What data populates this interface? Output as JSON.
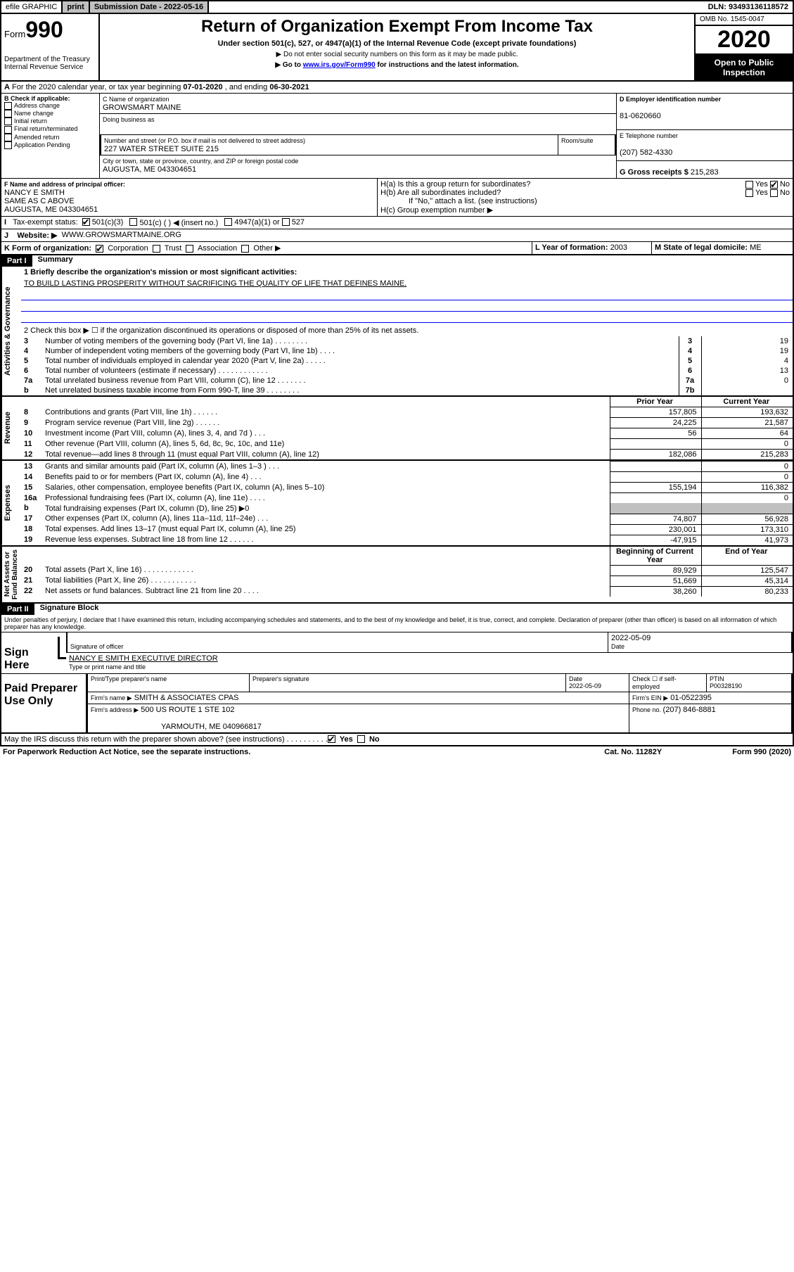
{
  "topbar": {
    "efile": "efile GRAPHIC",
    "print": "print",
    "subdate_label": "Submission Date - ",
    "subdate": "2022-05-16",
    "dln_label": "DLN: ",
    "dln": "93493136118572"
  },
  "header": {
    "form_word": "Form",
    "form_num": "990",
    "dept": "Department of the Treasury\nInternal Revenue Service",
    "title": "Return of Organization Exempt From Income Tax",
    "sub": "Under section 501(c), 527, or 4947(a)(1) of the Internal Revenue Code (except private foundations)",
    "sub2": "▶ Do not enter social security numbers on this form as it may be made public.",
    "sub3": "▶ Go to ",
    "sub3_link": "www.irs.gov/Form990",
    "sub3_tail": " for instructions and the latest information.",
    "omb": "OMB No. 1545-0047",
    "year": "2020",
    "inspect": "Open to Public Inspection"
  },
  "A": {
    "text": "For the 2020 calendar year, or tax year beginning ",
    "begin": "07-01-2020",
    "mid": " , and ending ",
    "end": "06-30-2021"
  },
  "B": {
    "label": "B Check if applicable:",
    "items": [
      "Address change",
      "Name change",
      "Initial return",
      "Final return/terminated",
      "Amended return",
      "Application Pending"
    ]
  },
  "C": {
    "name_label": "C Name of organization",
    "name": "GROWSMART MAINE",
    "dba_label": "Doing business as",
    "street_label": "Number and street (or P.O. box if mail is not delivered to street address)",
    "room_label": "Room/suite",
    "street": "227 WATER STREET SUITE 215",
    "city_label": "City or town, state or province, country, and ZIP or foreign postal code",
    "city": "AUGUSTA, ME  043304651"
  },
  "D": {
    "label": "D Employer identification number",
    "ein": "81-0620660"
  },
  "E": {
    "label": "E Telephone number",
    "phone": "(207) 582-4330"
  },
  "G": {
    "label": "G Gross receipts $ ",
    "amount": "215,283"
  },
  "F": {
    "label": "F  Name and address of principal officer:",
    "name": "NANCY E SMITH",
    "addr1": "SAME AS C ABOVE",
    "addr2": "AUGUSTA, ME  043304651"
  },
  "H": {
    "a": "H(a)  Is this a group return for subordinates?",
    "b": "H(b)  Are all subordinates included?",
    "note": "If \"No,\" attach a list. (see instructions)",
    "c": "H(c)  Group exemption number ▶",
    "yes": "Yes",
    "no": "No"
  },
  "I": {
    "label": "Tax-exempt status:",
    "c3": "501(c)(3)",
    "c": "501(c) (  ) ◀ (insert no.)",
    "a1": "4947(a)(1) or",
    "s527": "527"
  },
  "J": {
    "label": "Website: ▶",
    "url": "WWW.GROWSMARTMAINE.ORG"
  },
  "K": {
    "label": "K Form of organization:",
    "corp": "Corporation",
    "trust": "Trust",
    "assoc": "Association",
    "other": "Other ▶"
  },
  "L": {
    "label": "L Year of formation: ",
    "year": "2003"
  },
  "M": {
    "label": "M State of legal domicile: ",
    "state": "ME"
  },
  "part1": {
    "hdr": "Part I",
    "title": "Summary"
  },
  "summary": {
    "l1": "1  Briefly describe the organization's mission or most significant activities:",
    "mission": "TO BUILD LASTING PROSPERITY WITHOUT SACRIFICING THE QUALITY OF LIFE THAT DEFINES MAINE.",
    "l2": "2  Check this box ▶ ☐  if the organization discontinued its operations or disposed of more than 25% of its net assets.",
    "rows_ag": [
      {
        "n": "3",
        "t": "Number of voting members of the governing body (Part VI, line 1a)   .    .    .    .    .    .    .    .",
        "b": "3",
        "v": "19"
      },
      {
        "n": "4",
        "t": "Number of independent voting members of the governing body (Part VI, line 1b)  .    .    .    .",
        "b": "4",
        "v": "19"
      },
      {
        "n": "5",
        "t": "Total number of individuals employed in calendar year 2020 (Part V, line 2a)   .    .    .    .    .",
        "b": "5",
        "v": "4"
      },
      {
        "n": "6",
        "t": "Total number of volunteers (estimate if necessary)   .    .    .    .    .    .    .    .    .    .    .    .",
        "b": "6",
        "v": "13"
      },
      {
        "n": "7a",
        "t": "Total unrelated business revenue from Part VIII, column (C), line 12   .    .    .    .    .    .    .",
        "b": "7a",
        "v": "0"
      },
      {
        "n": "b",
        "t": "Net unrelated business taxable income from Form 990-T, line 39   .    .    .    .    .    .    .    .",
        "b": "7b",
        "v": ""
      }
    ],
    "col_prior": "Prior Year",
    "col_current": "Current Year",
    "rows_rev": [
      {
        "n": "8",
        "t": "Contributions and grants (Part VIII, line 1h)   .    .    .    .    .    .",
        "p": "157,805",
        "c": "193,632"
      },
      {
        "n": "9",
        "t": "Program service revenue (Part VIII, line 2g)   .    .    .    .    .    .",
        "p": "24,225",
        "c": "21,587"
      },
      {
        "n": "10",
        "t": "Investment income (Part VIII, column (A), lines 3, 4, and 7d )   .    .    .",
        "p": "56",
        "c": "64"
      },
      {
        "n": "11",
        "t": "Other revenue (Part VIII, column (A), lines 5, 6d, 8c, 9c, 10c, and 11e)",
        "p": "",
        "c": "0"
      },
      {
        "n": "12",
        "t": "Total revenue—add lines 8 through 11 (must equal Part VIII, column (A), line 12)",
        "p": "182,086",
        "c": "215,283"
      }
    ],
    "rows_exp": [
      {
        "n": "13",
        "t": "Grants and similar amounts paid (Part IX, column (A), lines 1–3 )  .    .    .",
        "p": "",
        "c": "0"
      },
      {
        "n": "14",
        "t": "Benefits paid to or for members (Part IX, column (A), line 4)  .    .    .",
        "p": "",
        "c": "0"
      },
      {
        "n": "15",
        "t": "Salaries, other compensation, employee benefits (Part IX, column (A), lines 5–10)",
        "p": "155,194",
        "c": "116,382"
      },
      {
        "n": "16a",
        "t": "Professional fundraising fees (Part IX, column (A), line 11e)  .    .    .    .",
        "p": "",
        "c": "0"
      },
      {
        "n": "b",
        "t": "Total fundraising expenses (Part IX, column (D), line 25) ▶0",
        "p": "GRAY",
        "c": "GRAY"
      },
      {
        "n": "17",
        "t": "Other expenses (Part IX, column (A), lines 11a–11d, 11f–24e)   .    .    .",
        "p": "74,807",
        "c": "56,928"
      },
      {
        "n": "18",
        "t": "Total expenses. Add lines 13–17 (must equal Part IX, column (A), line 25)",
        "p": "230,001",
        "c": "173,310"
      },
      {
        "n": "19",
        "t": "Revenue less expenses. Subtract line 18 from line 12  .    .    .    .    .    .",
        "p": "-47,915",
        "c": "41,973"
      }
    ],
    "col_begin": "Beginning of Current Year",
    "col_end": "End of Year",
    "rows_na": [
      {
        "n": "20",
        "t": "Total assets (Part X, line 16)  .    .    .    .    .    .    .    .    .    .    .    .",
        "p": "89,929",
        "c": "125,547"
      },
      {
        "n": "21",
        "t": "Total liabilities (Part X, line 26)   .    .    .    .    .    .    .    .    .    .    .",
        "p": "51,669",
        "c": "45,314"
      },
      {
        "n": "22",
        "t": "Net assets or fund balances. Subtract line 21 from line 20  .    .    .    .",
        "p": "38,260",
        "c": "80,233"
      }
    ]
  },
  "sidebars": {
    "ag": "Activities & Governance",
    "rev": "Revenue",
    "exp": "Expenses",
    "na": "Net Assets or\nFund Balances"
  },
  "part2": {
    "hdr": "Part II",
    "title": "Signature Block",
    "decl": "Under penalties of perjury, I declare that I have examined this return, including accompanying schedules and statements, and to the best of my knowledge and belief, it is true, correct, and complete. Declaration of preparer (other than officer) is based on all information of which preparer has any knowledge."
  },
  "sign": {
    "here": "Sign Here",
    "sig_label": "Signature of officer",
    "date_label": "Date",
    "date": "2022-05-09",
    "name": "NANCY E SMITH  EXECUTIVE DIRECTOR",
    "name_label": "Type or print name and title"
  },
  "paid": {
    "title": "Paid Preparer Use Only",
    "h_name": "Print/Type preparer's name",
    "h_sig": "Preparer's signature",
    "h_date": "Date",
    "date": "2022-05-09",
    "h_check": "Check ☐ if self-employed",
    "h_ptin": "PTIN",
    "ptin": "P00328190",
    "firm_label": "Firm's name    ▶",
    "firm": "SMITH & ASSOCIATES CPAS",
    "ein_label": "Firm's EIN ▶",
    "ein": "01-0522395",
    "addr_label": "Firm's address ▶",
    "addr1": "500 US ROUTE 1 STE 102",
    "addr2": "YARMOUTH, ME  040966817",
    "phone_label": "Phone no. ",
    "phone": "(207) 846-8881"
  },
  "discuss": {
    "text": "May the IRS discuss this return with the preparer shown above? (see instructions)   .    .    .    .    .    .    .    .    .    .",
    "yes": "Yes",
    "no": "No"
  },
  "footer": {
    "left": "For Paperwork Reduction Act Notice, see the separate instructions.",
    "mid": "Cat. No. 11282Y",
    "right": "Form 990 (2020)"
  }
}
